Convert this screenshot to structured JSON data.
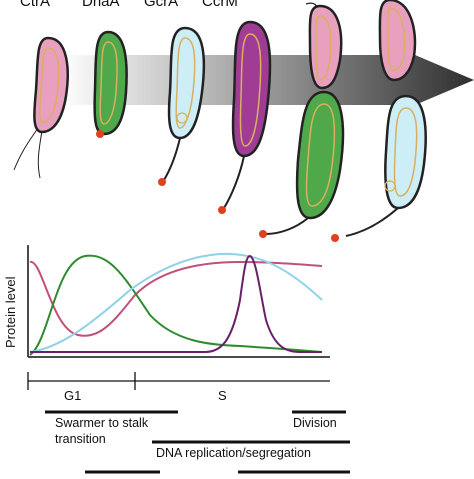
{
  "header_labels": [
    "CtrA",
    "DnaA",
    "GcrA",
    "CcrM"
  ],
  "y_axis_label": "Protein level",
  "phases": {
    "g1": "G1",
    "s": "S"
  },
  "processes": {
    "swarmer_to_stalk_line1": "Swarmer to stalk",
    "swarmer_to_stalk_line2": "transition",
    "division": "Division",
    "dna_replication": "DNA replication/segregation"
  },
  "colors": {
    "ctra": "#c0507a",
    "dnaa": "#2e8b2e",
    "gcra": "#8fd3e8",
    "ccrm": "#6a1f6a",
    "ctra_fill": "#e9a0bf",
    "dnaa_fill": "#4fa84a",
    "gcra_fill": "#cdeef6",
    "ccrm_fill": "#a03c94",
    "holdfast": "#e04020",
    "arrow_dark": "#3a3a3a"
  }
}
